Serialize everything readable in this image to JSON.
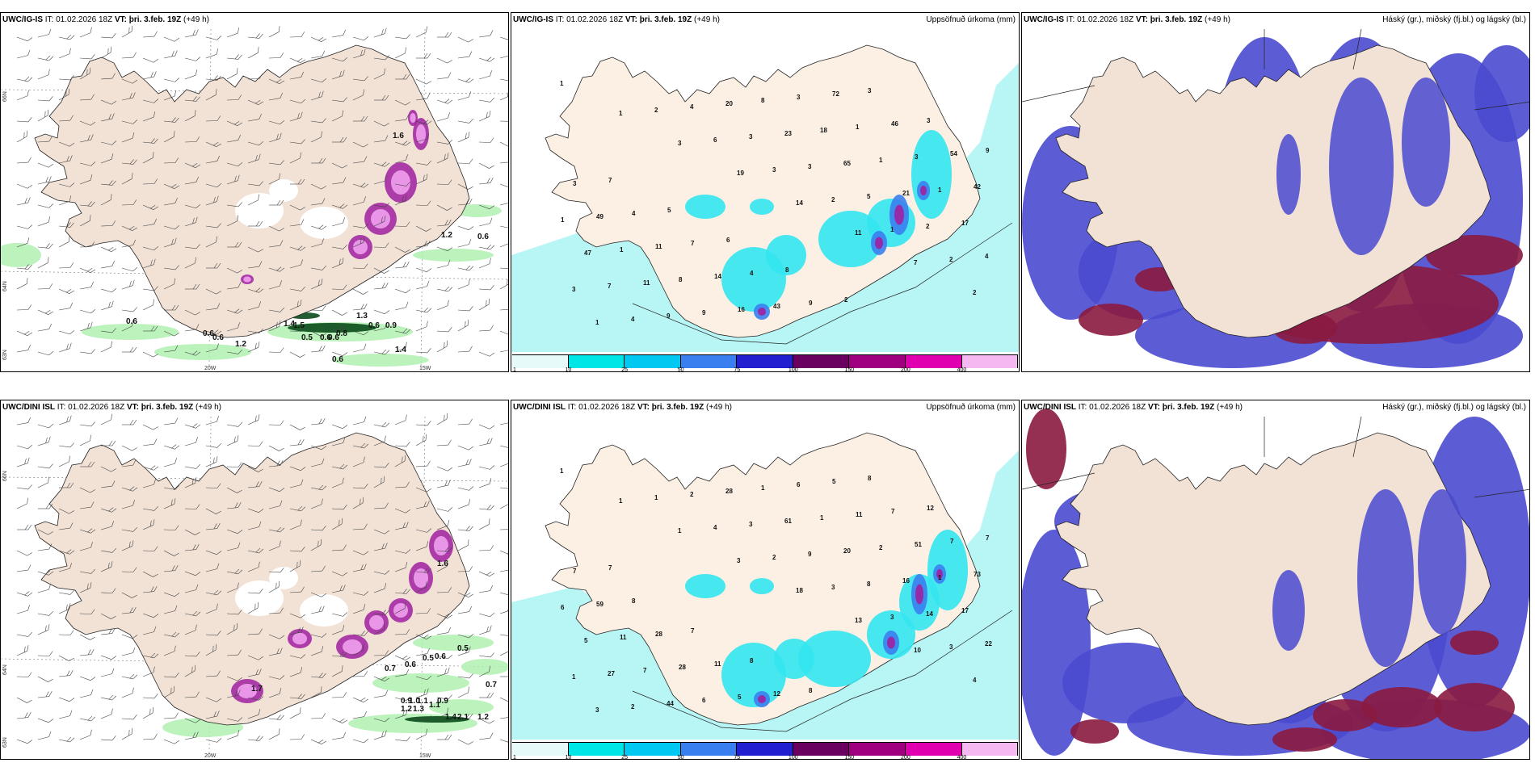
{
  "panels": [
    {
      "id": "top-left",
      "model": "UWC/IG-IS",
      "it_label": "IT:",
      "it_value": "01.02.2026 18Z",
      "vt_label": "VT:",
      "vt_value": "þri. 3.feb. 19Z",
      "lead": "(+49 h)",
      "right_title": "",
      "lat_labels": [
        "66N",
        "64N",
        "63N"
      ],
      "lon_labels": [
        "20W",
        "15W"
      ],
      "value_labels": [
        "0.6",
        "0.6",
        "0.6",
        "1.2",
        "1.4",
        "1.5",
        "0.5",
        "0.6",
        "0.6",
        "0.8",
        "1.3",
        "0.6",
        "0.9",
        "1.4",
        "0.6",
        "1.2",
        "0.6",
        "1.6"
      ]
    },
    {
      "id": "top-middle",
      "model": "UWC/IG-IS",
      "it_label": "IT:",
      "it_value": "01.02.2026 18Z",
      "vt_label": "VT:",
      "vt_value": "þri. 3.feb. 19Z",
      "lead": "(+49 h)",
      "right_title": "Uppsöfnuð úrkoma (mm)",
      "value_labels": [
        "1",
        "1",
        "3",
        "19",
        "14",
        "11",
        "7",
        "2",
        "1",
        "2",
        "6",
        "3",
        "2",
        "1",
        "2",
        "3",
        "4",
        "4",
        "3",
        "3",
        "5",
        "2",
        "4",
        "7",
        "9",
        "20",
        "23",
        "65",
        "21",
        "17",
        "47",
        "11",
        "9",
        "8",
        "18",
        "1",
        "1",
        "1",
        "1",
        "8",
        "16",
        "3",
        "1",
        "3",
        "42",
        "49",
        "11",
        "14",
        "43",
        "72",
        "46",
        "54",
        "3",
        "4",
        "7",
        "4",
        "9",
        "3",
        "3",
        "9",
        "7",
        "5",
        "6",
        "8",
        "2"
      ]
    },
    {
      "id": "top-right",
      "model": "UWC/IG-IS",
      "it_label": "IT:",
      "it_value": "01.02.2026 18Z",
      "vt_label": "VT:",
      "vt_value": "þri. 3.feb. 19Z",
      "lead": "(+49 h)",
      "right_title": "Háský (gr.), miðský (fj.bl.) og lágský (bl.)"
    },
    {
      "id": "bottom-left",
      "model": "UWC/DINI ISL",
      "it_label": "IT:",
      "it_value": "01.02.2026 18Z",
      "vt_label": "VT:",
      "vt_value": "þri. 3.feb. 19Z",
      "lead": "(+49 h)",
      "right_title": "",
      "lat_labels": [
        "66N",
        "64N",
        "63N"
      ],
      "lon_labels": [
        "20W",
        "15W"
      ],
      "value_labels": [
        "0.5",
        "0.7",
        "0.6",
        "0.5",
        "0.6",
        "0.7",
        "0.9",
        "1.0",
        "1.1",
        "1.2",
        "1.3",
        "1.1",
        "0.9",
        "1.4",
        "2.1",
        "1.2",
        "1.7",
        "1.6"
      ]
    },
    {
      "id": "bottom-middle",
      "model": "UWC/DINI ISL",
      "it_label": "IT:",
      "it_value": "01.02.2026 18Z",
      "vt_label": "VT:",
      "vt_value": "þri. 3.feb. 19Z",
      "lead": "(+49 h)",
      "right_title": "Uppsöfnuð úrkoma (mm)",
      "value_labels": [
        "1",
        "1",
        "1",
        "3",
        "18",
        "13",
        "10",
        "4",
        "3",
        "1",
        "4",
        "2",
        "3",
        "3",
        "3",
        "1",
        "2",
        "2",
        "3",
        "9",
        "8",
        "14",
        "22",
        "27",
        "44",
        "28",
        "61",
        "20",
        "16",
        "17",
        "5",
        "7",
        "6",
        "1",
        "1",
        "2",
        "1",
        "6",
        "11",
        "28",
        "5",
        "6",
        "11",
        "51",
        "73",
        "59",
        "28",
        "11",
        "12",
        "5",
        "7",
        "7",
        "7",
        "8",
        "7",
        "8",
        "8",
        "8",
        "12",
        "7",
        "7"
      ]
    },
    {
      "id": "bottom-right",
      "model": "UWC/DINI ISL",
      "it_label": "IT:",
      "it_value": "01.02.2026 18Z",
      "vt_label": "VT:",
      "vt_value": "þri. 3.feb. 19Z",
      "lead": "(+49 h)",
      "right_title": "Háský (gr.), miðský (fj.bl.) og lágský (bl.)"
    }
  ],
  "legend": {
    "ticks": [
      "1",
      "10",
      "25",
      "50",
      "75",
      "100",
      "150",
      "200",
      "400"
    ],
    "colors": [
      "#e6fafa",
      "#00e6e6",
      "#00c8f0",
      "#3a7ff0",
      "#2020d0",
      "#6a0060",
      "#a00080",
      "#e000b0",
      "#f6b8f0"
    ]
  },
  "colors": {
    "land": "#f2e2d6",
    "precip_land": "#fcefe3",
    "ocean": "#ffffff",
    "light_cyan": "#b8f6f6",
    "cyan": "#33e6f0",
    "blue": "#3a7ff0",
    "purple": "#a020a0",
    "magenta": "#e040d0",
    "pink": "#f0a0f0",
    "green_light": "#b0f0b0",
    "green": "#2aa040",
    "green_dark": "#0a4a1a",
    "cloud_blue": "#4a4ad0",
    "cloud_maroon": "#8a1a40",
    "cloud_red": "#d06060"
  }
}
